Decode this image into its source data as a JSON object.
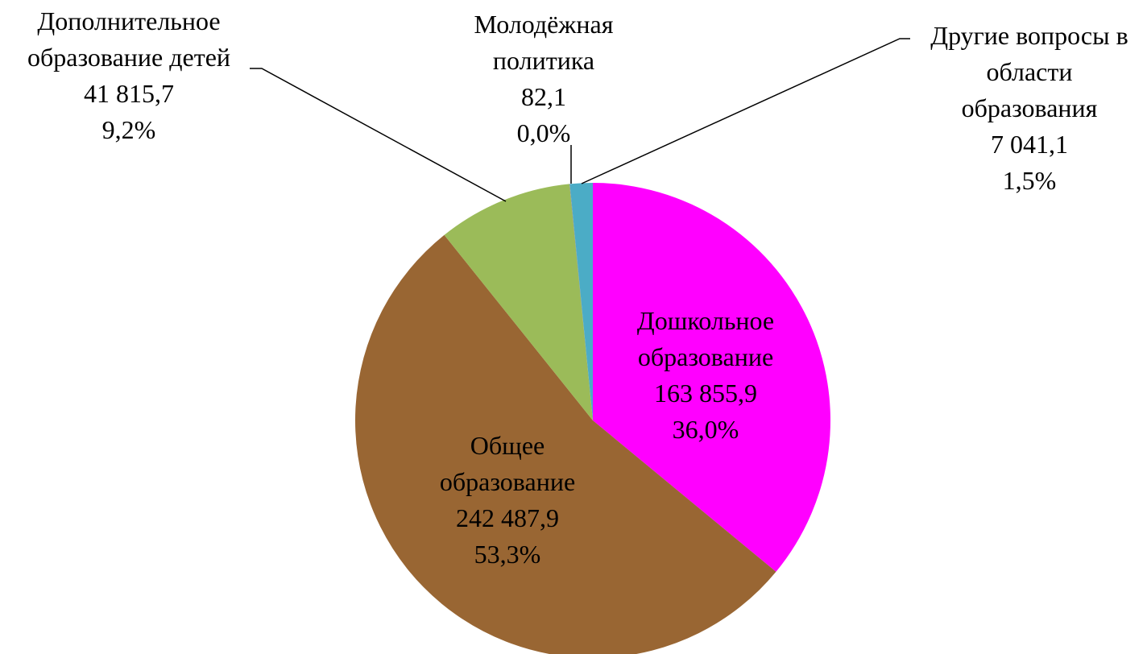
{
  "chart_data": {
    "type": "pie",
    "categories": [
      "Дошкольное образование",
      "Общее образование",
      "Дополнительное образование детей",
      "Молодёжная политика",
      "Другие вопросы в области образования"
    ],
    "values": [
      163855.9,
      242487.9,
      41815.7,
      82.1,
      7041.1
    ],
    "value_labels": [
      "163 855,9",
      "242 487,9",
      "41 815,7",
      "82,1",
      "7 041,1"
    ],
    "percents": [
      36.0,
      53.3,
      9.2,
      0.0,
      1.5
    ],
    "percent_labels": [
      "36,0%",
      "53,3%",
      "9,2%",
      "0,0%",
      "1,5%"
    ],
    "colors": [
      "#ff00ff",
      "#996633",
      "#9bbb59",
      "#8064a2",
      "#4bacc6"
    ]
  }
}
